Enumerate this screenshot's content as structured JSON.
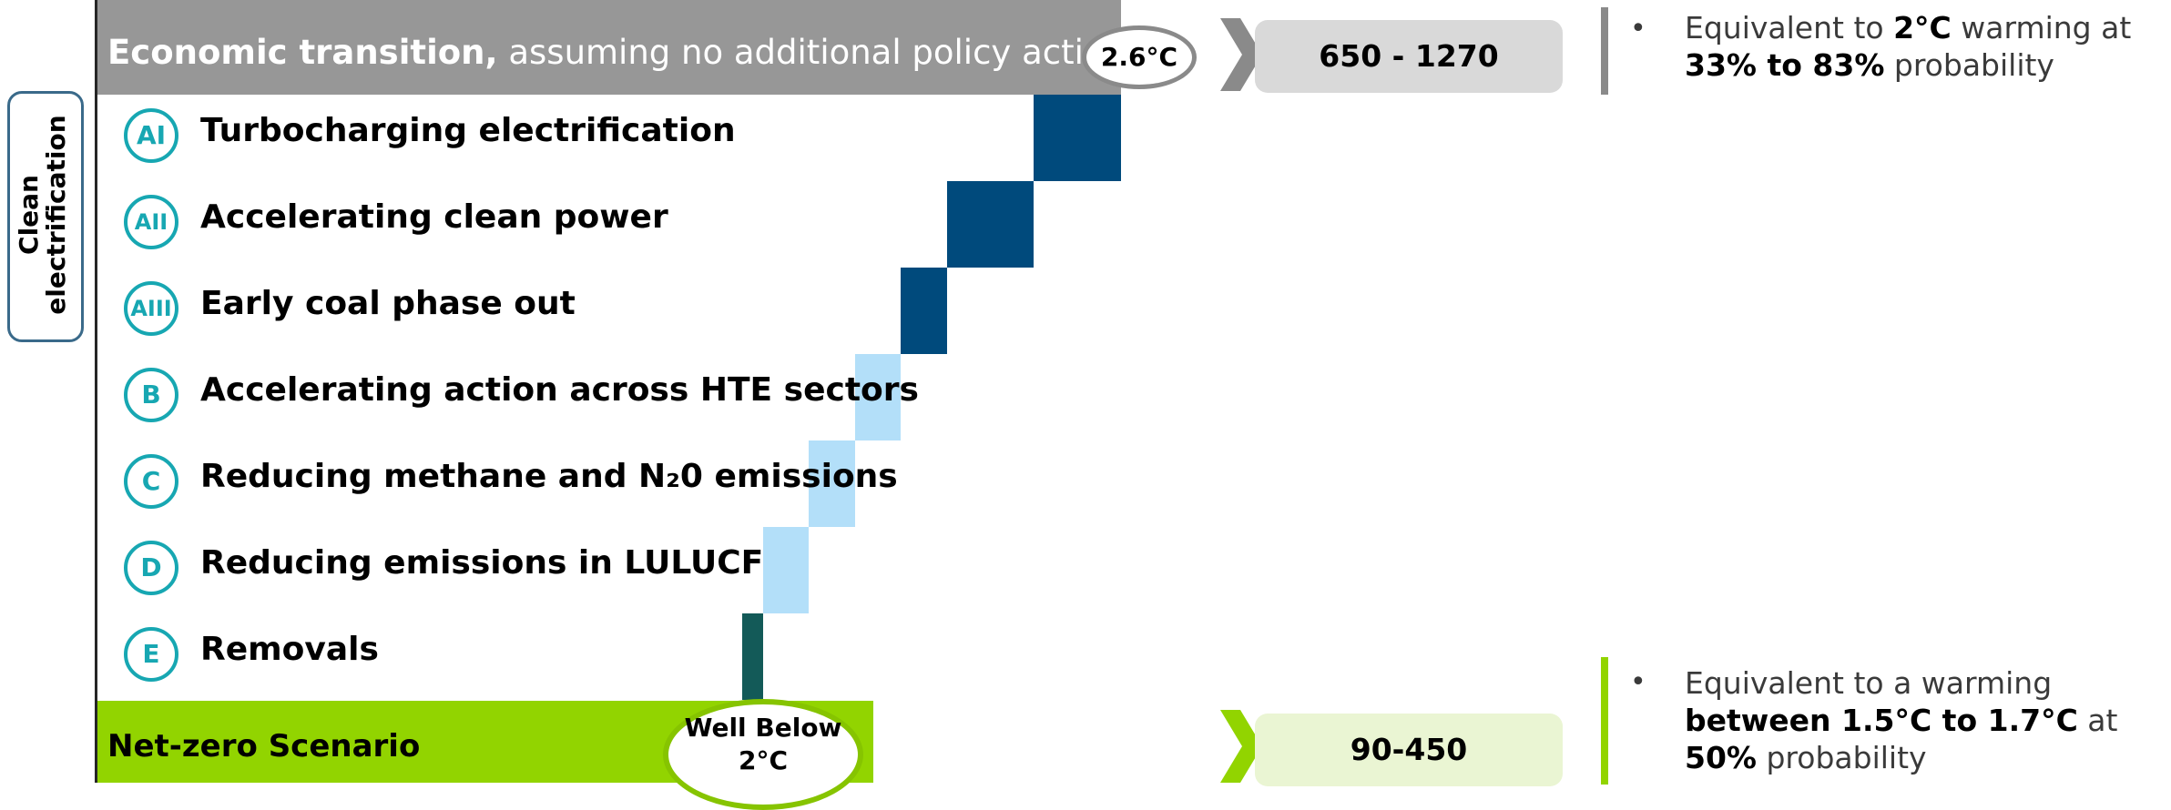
{
  "colors": {
    "baseline": "#979797",
    "netzero": "#92d400",
    "dark_blue": "#004a7c",
    "light_blue": "#b3dff9",
    "dark_teal": "#135a58",
    "badge": "#17a7b2"
  },
  "side_label": {
    "line1": "Clean",
    "line2": "electrification"
  },
  "baseline": {
    "label_bold": "Economic transition,",
    "label_rest": " assuming no additional policy action",
    "temp": "2.6°C",
    "range": "650 - 1270",
    "note_prefix": "Equivalent to ",
    "note_bold1": "2°C",
    "note_mid": " warming at ",
    "note_bold2": "33% to 83%",
    "note_suffix": " probability"
  },
  "netzero": {
    "label": "Net-zero Scenario",
    "temp_line1": "Well Below",
    "temp_line2": "2°C",
    "range": "90-450",
    "note_prefix": "Equivalent to a warming ",
    "note_bold1": "between 1.5°C to 1.7°C",
    "note_mid": " at ",
    "note_bold2": "50%",
    "note_suffix": " probability"
  },
  "chart_data": {
    "type": "bar",
    "subtype": "waterfall",
    "baseline_value": 1,
    "categories": [
      "AI",
      "AII",
      "AIII",
      "B",
      "C",
      "D",
      "E"
    ],
    "series": [
      {
        "values": [
          0.085,
          0.085,
          0.045,
          0.045,
          0.045,
          0.045,
          0.02
        ]
      }
    ],
    "levers": [
      {
        "badge": "AI",
        "label": "Turbocharging electrification",
        "color": "dark_blue"
      },
      {
        "badge": "AII",
        "label": "Accelerating clean power",
        "color": "dark_blue"
      },
      {
        "badge": "AIII",
        "label": "Early coal phase out",
        "color": "dark_blue"
      },
      {
        "badge": "B",
        "label": "Accelerating action across HTE sectors",
        "color": "light_blue"
      },
      {
        "badge": "C",
        "label": "Reducing methane and N₂0 emissions",
        "color": "light_blue"
      },
      {
        "badge": "D",
        "label": "Reducing emissions in LULUCF",
        "color": "light_blue"
      },
      {
        "badge": "E",
        "label": "Removals",
        "color": "dark_teal"
      }
    ]
  }
}
